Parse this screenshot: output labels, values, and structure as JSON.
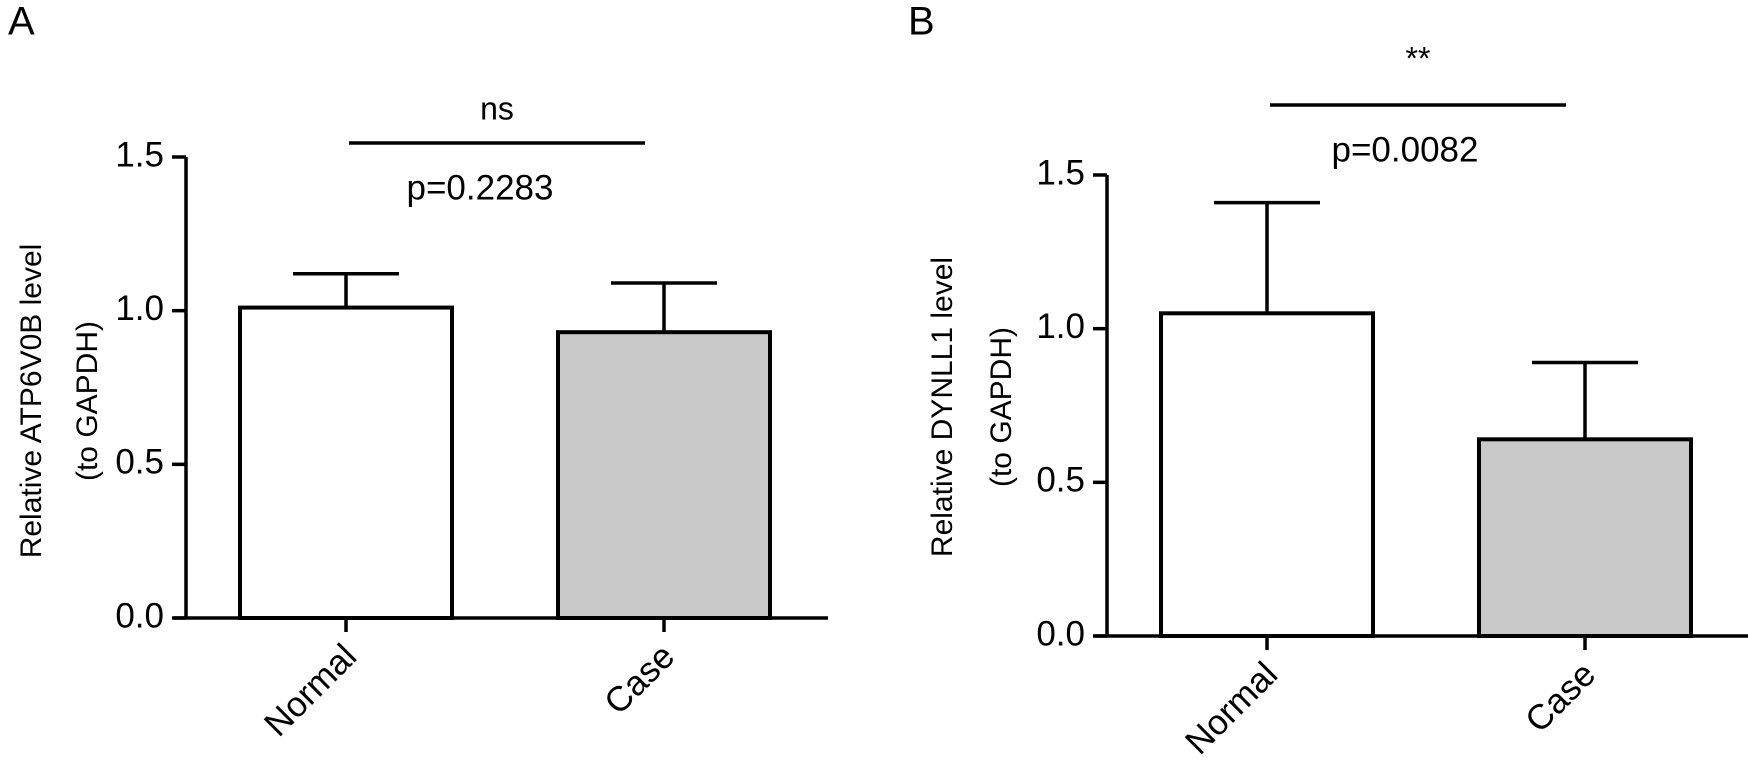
{
  "chart_data": [
    {
      "type": "bar",
      "panel": "A",
      "ylabel": [
        "Relative ATP6V0B level",
        "(to GAPDH)"
      ],
      "categories": [
        "Normal",
        "Case"
      ],
      "values": [
        1.01,
        0.93
      ],
      "errors": [
        0.11,
        0.16
      ],
      "colors": [
        "#ffffff",
        "#c8c8c8"
      ],
      "ylim": [
        0,
        1.5
      ],
      "yticks": [
        {
          "value": 0,
          "label": "0.0"
        },
        0.5,
        {
          "value": 1,
          "label": "1.0"
        },
        1.5
      ],
      "significance": {
        "label": "ns",
        "p": "p=0.2283"
      }
    },
    {
      "type": "bar",
      "panel": "B",
      "ylabel": [
        "Relative DYNLL1 level",
        "(to GAPDH)"
      ],
      "categories": [
        "Normal",
        "Case"
      ],
      "values": [
        1.05,
        0.64
      ],
      "errors": [
        0.36,
        0.25
      ],
      "colors": [
        "#ffffff",
        "#c8c8c8"
      ],
      "ylim": [
        0,
        1.5
      ],
      "yticks": [
        {
          "value": 0,
          "label": "0.0"
        },
        0.5,
        {
          "value": 1,
          "label": "1.0"
        },
        1.5
      ],
      "significance": {
        "label": "**",
        "p": "p=0.0082"
      }
    }
  ]
}
